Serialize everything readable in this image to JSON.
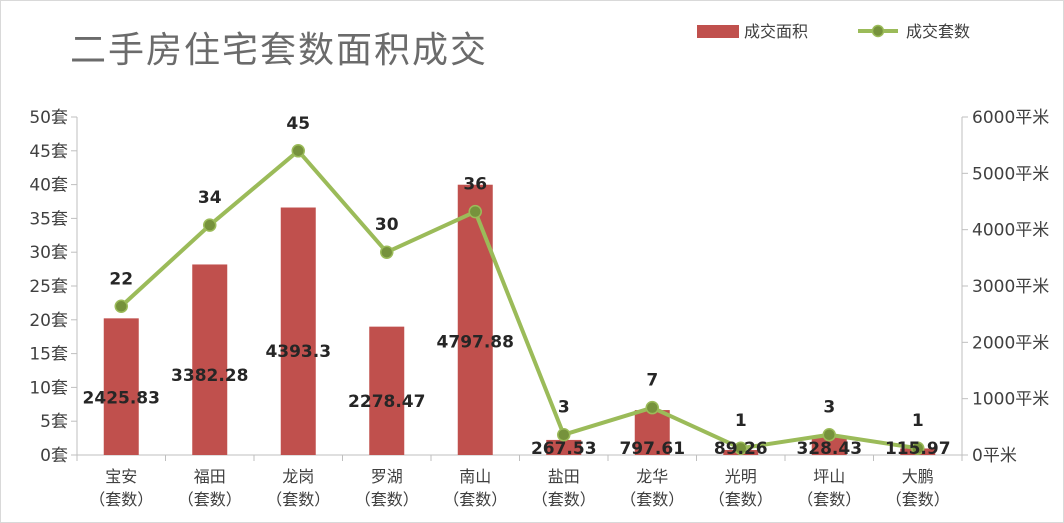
{
  "chart_data": {
    "type": "bar+line",
    "title": "二手房住宅套数面积成交",
    "categories": [
      {
        "name": "宝安",
        "sub": "（套数）"
      },
      {
        "name": "福田",
        "sub": "（套数）"
      },
      {
        "name": "龙岗",
        "sub": "（套数）"
      },
      {
        "name": "罗湖",
        "sub": "（套数）"
      },
      {
        "name": "南山",
        "sub": "（套数）"
      },
      {
        "name": "盐田",
        "sub": "（套数）"
      },
      {
        "name": "龙华",
        "sub": "（套数）"
      },
      {
        "name": "光明",
        "sub": "（套数）"
      },
      {
        "name": "坪山",
        "sub": "（套数）"
      },
      {
        "name": "大鹏",
        "sub": "（套数）"
      }
    ],
    "series": [
      {
        "name": "成交面积",
        "type": "bar",
        "axis": "right",
        "color": "#c0504d",
        "values": [
          2425.83,
          3382.28,
          4393.3,
          2278.47,
          4797.88,
          267.53,
          797.61,
          89.26,
          328.43,
          115.97
        ],
        "labels": [
          "2425.83",
          "3382.28",
          "4393.3",
          "2278.47",
          "4797.88",
          "267.53",
          "797.61",
          "89.26",
          "328.43",
          "115.97"
        ]
      },
      {
        "name": "成交套数",
        "type": "line",
        "axis": "left",
        "color": "#9bbb59",
        "marker_color": "#76923c",
        "values": [
          22,
          34,
          45,
          30,
          36,
          3,
          7,
          1,
          3,
          1
        ],
        "labels": [
          "22",
          "34",
          "45",
          "30",
          "36",
          "3",
          "7",
          "1",
          "3",
          "1"
        ]
      }
    ],
    "y_left": {
      "ylim": [
        0,
        50
      ],
      "ticks": [
        0,
        5,
        10,
        15,
        20,
        25,
        30,
        35,
        40,
        45,
        50
      ],
      "tick_labels": [
        "0套",
        "5套",
        "10套",
        "15套",
        "20套",
        "25套",
        "30套",
        "35套",
        "40套",
        "45套",
        "50套"
      ]
    },
    "y_right": {
      "ylim": [
        0,
        6000
      ],
      "ticks": [
        0,
        1000,
        2000,
        3000,
        4000,
        5000,
        6000
      ],
      "tick_labels": [
        "0平米",
        "1000平米",
        "2000平米",
        "3000平米",
        "4000平米",
        "5000平米",
        "6000平米"
      ]
    },
    "legend": "top-right",
    "grid": false
  }
}
